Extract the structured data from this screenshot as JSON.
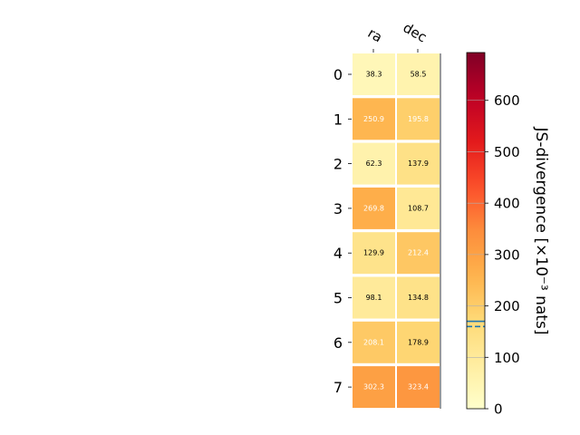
{
  "chart_data": {
    "type": "heatmap",
    "columns": [
      "ra",
      "dec"
    ],
    "rows": [
      "0",
      "1",
      "2",
      "3",
      "4",
      "5",
      "6",
      "7"
    ],
    "values": [
      [
        38.3,
        58.5
      ],
      [
        250.9,
        195.8
      ],
      [
        62.3,
        137.9
      ],
      [
        269.8,
        108.7
      ],
      [
        129.9,
        212.4
      ],
      [
        98.1,
        134.8
      ],
      [
        208.1,
        178.9
      ],
      [
        302.3,
        323.4
      ]
    ],
    "value_labels": [
      [
        "38.3",
        "58.5"
      ],
      [
        "250.9",
        "195.8"
      ],
      [
        "62.3",
        "137.9"
      ],
      [
        "269.8",
        "108.7"
      ],
      [
        "129.9",
        "212.4"
      ],
      [
        "98.1",
        "134.8"
      ],
      [
        "208.1",
        "178.9"
      ],
      [
        "302.3",
        "323.4"
      ]
    ],
    "colorbar": {
      "label": "JS-divergence [×10⁻³ nats]",
      "range": [
        0,
        693
      ],
      "ticks": [
        0,
        100,
        200,
        300,
        400,
        500,
        600
      ],
      "tick_labels": [
        "0",
        "100",
        "200",
        "300",
        "400",
        "500",
        "600"
      ],
      "colormap": "YlOrRd",
      "reference_line_solid": 170,
      "reference_line_dashed": 160,
      "reference_line_color": "#1f77b4"
    },
    "annotation_threshold": 180,
    "grid": false
  }
}
